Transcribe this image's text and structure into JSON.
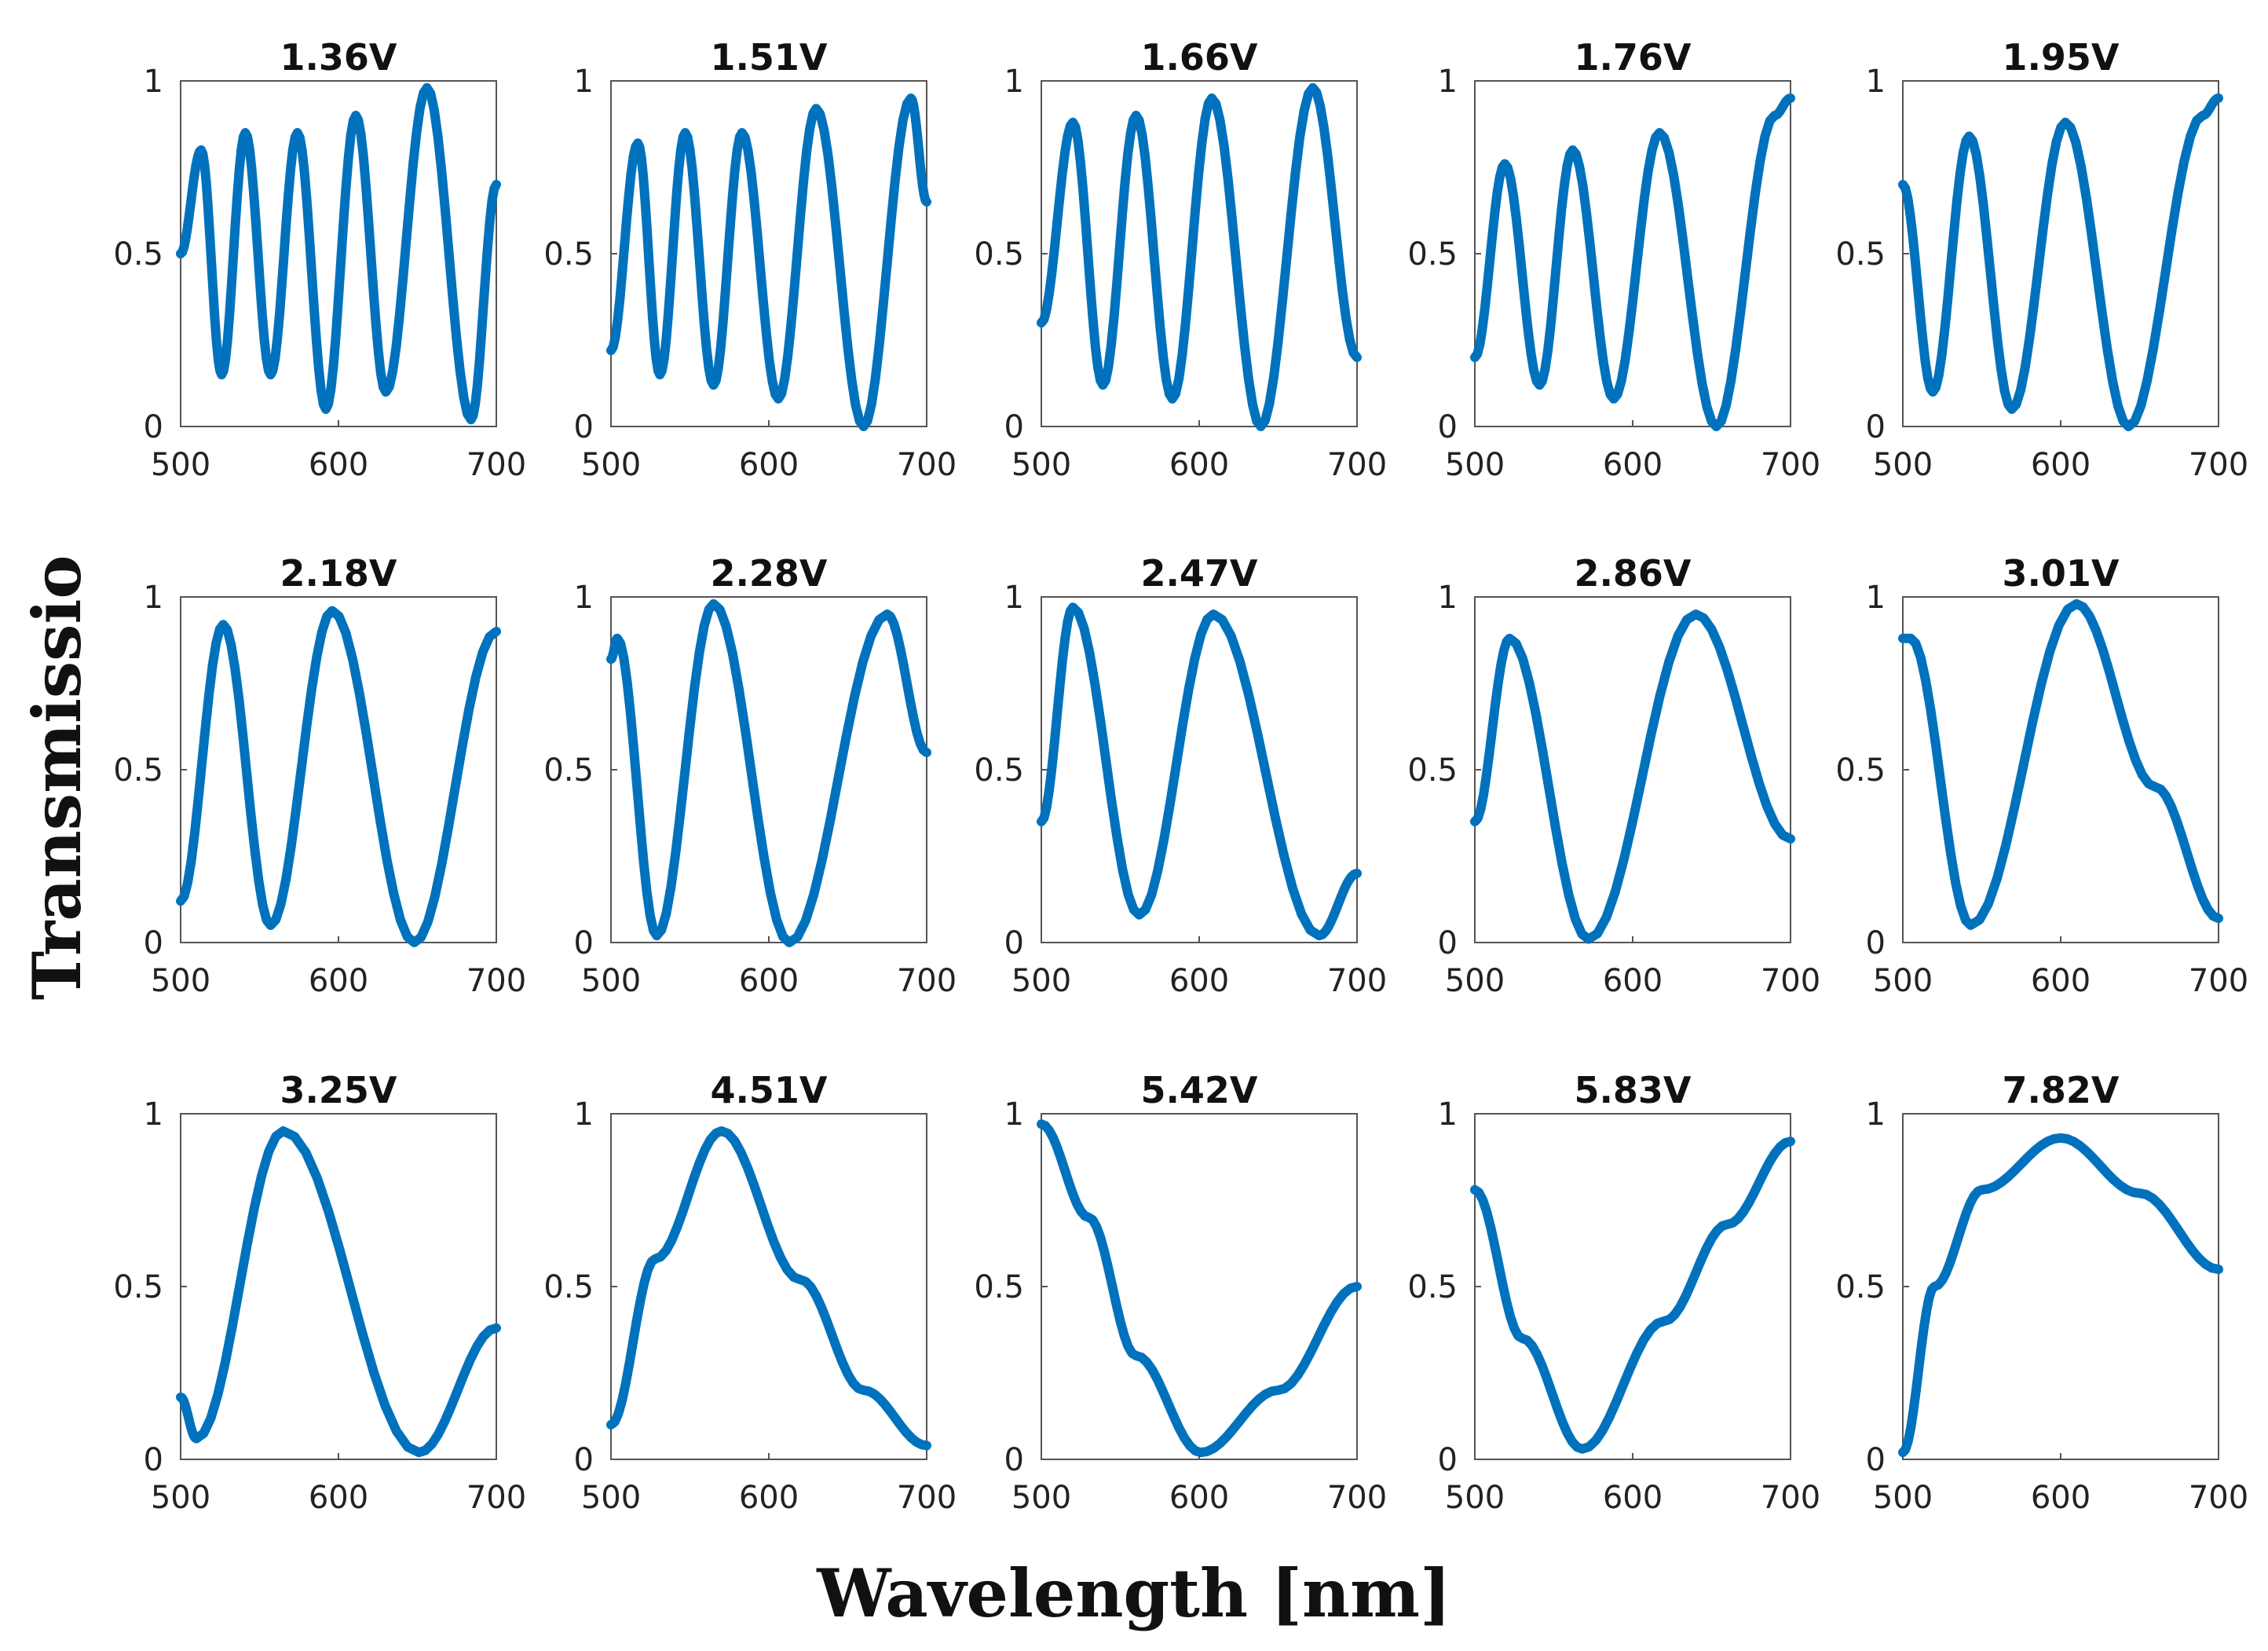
{
  "figure": {
    "xlabel": "Wavelength [nm]",
    "ylabel": "Transmissio",
    "line_color": "#0072BD"
  },
  "chart_data": [
    {
      "type": "line",
      "title": "1.36V",
      "xlim": [
        500,
        700
      ],
      "ylim": [
        0,
        1
      ],
      "xticks": [
        "500",
        "600",
        "700"
      ],
      "yticks": [
        "0",
        "0.5",
        "1"
      ],
      "x": [
        500,
        513,
        526,
        541,
        557,
        574,
        592,
        611,
        630,
        656,
        684,
        700
      ],
      "y": [
        0.5,
        0.8,
        0.15,
        0.85,
        0.15,
        0.85,
        0.05,
        0.9,
        0.1,
        0.98,
        0.02,
        0.7
      ]
    },
    {
      "type": "line",
      "title": "1.51V",
      "xlim": [
        500,
        700
      ],
      "ylim": [
        0,
        1
      ],
      "xticks": [
        "500",
        "600",
        "700"
      ],
      "yticks": [
        "0",
        "0.5",
        "1"
      ],
      "x": [
        500,
        517,
        531,
        547,
        565,
        583,
        606,
        630,
        660,
        690,
        700
      ],
      "y": [
        0.22,
        0.82,
        0.15,
        0.85,
        0.12,
        0.85,
        0.08,
        0.92,
        0.0,
        0.95,
        0.65
      ]
    },
    {
      "type": "line",
      "title": "1.66V",
      "xlim": [
        500,
        700
      ],
      "ylim": [
        0,
        1
      ],
      "xticks": [
        "500",
        "600",
        "700"
      ],
      "yticks": [
        "0",
        "0.5",
        "1"
      ],
      "x": [
        500,
        520,
        539,
        560,
        583,
        608,
        639,
        672,
        700
      ],
      "y": [
        0.3,
        0.88,
        0.12,
        0.9,
        0.08,
        0.95,
        0.0,
        0.98,
        0.2
      ]
    },
    {
      "type": "line",
      "title": "1.76V",
      "xlim": [
        500,
        700
      ],
      "ylim": [
        0,
        1
      ],
      "xticks": [
        "500",
        "600",
        "700"
      ],
      "yticks": [
        "0",
        "0.5",
        "1"
      ],
      "x": [
        500,
        519,
        541,
        562,
        588,
        617,
        653,
        690,
        700
      ],
      "y": [
        0.2,
        0.76,
        0.12,
        0.8,
        0.08,
        0.85,
        0.0,
        0.9,
        0.95
      ]
    },
    {
      "type": "line",
      "title": "1.95V",
      "xlim": [
        500,
        700
      ],
      "ylim": [
        0,
        1
      ],
      "xticks": [
        "500",
        "600",
        "700"
      ],
      "yticks": [
        "0",
        "0.5",
        "1"
      ],
      "x": [
        500,
        519,
        542,
        569,
        603,
        643,
        690,
        700
      ],
      "y": [
        0.7,
        0.1,
        0.84,
        0.05,
        0.88,
        0.0,
        0.9,
        0.95
      ]
    },
    {
      "type": "line",
      "title": "2.18V",
      "xlim": [
        500,
        700
      ],
      "ylim": [
        0,
        1
      ],
      "xticks": [
        "500",
        "600",
        "700"
      ],
      "yticks": [
        "0",
        "0.5",
        "1"
      ],
      "x": [
        500,
        527,
        557,
        596,
        648,
        700
      ],
      "y": [
        0.12,
        0.92,
        0.05,
        0.96,
        0.0,
        0.9
      ]
    },
    {
      "type": "line",
      "title": "2.28V",
      "xlim": [
        500,
        700
      ],
      "ylim": [
        0,
        1
      ],
      "xticks": [
        "500",
        "600",
        "700"
      ],
      "yticks": [
        "0",
        "0.5",
        "1"
      ],
      "x": [
        500,
        504,
        529,
        565,
        613,
        675,
        700
      ],
      "y": [
        0.82,
        0.88,
        0.02,
        0.98,
        0.0,
        0.95,
        0.55
      ]
    },
    {
      "type": "line",
      "title": "2.47V",
      "xlim": [
        500,
        700
      ],
      "ylim": [
        0,
        1
      ],
      "xticks": [
        "500",
        "600",
        "700"
      ],
      "yticks": [
        "0",
        "0.5",
        "1"
      ],
      "x": [
        500,
        520,
        562,
        609,
        676,
        700
      ],
      "y": [
        0.35,
        0.97,
        0.08,
        0.95,
        0.02,
        0.2
      ]
    },
    {
      "type": "line",
      "title": "2.86V",
      "xlim": [
        500,
        700
      ],
      "ylim": [
        0,
        1
      ],
      "xticks": [
        "500",
        "600",
        "700"
      ],
      "yticks": [
        "0",
        "0.5",
        "1"
      ],
      "x": [
        500,
        522,
        572,
        640,
        700
      ],
      "y": [
        0.35,
        0.88,
        0.01,
        0.95,
        0.3
      ]
    },
    {
      "type": "line",
      "title": "3.01V",
      "xlim": [
        500,
        700
      ],
      "ylim": [
        0,
        1
      ],
      "xticks": [
        "500",
        "600",
        "700"
      ],
      "yticks": [
        "0",
        "0.5",
        "1"
      ],
      "x": [
        500,
        505,
        543,
        610,
        660,
        700
      ],
      "y": [
        0.88,
        0.88,
        0.05,
        0.98,
        0.45,
        0.07
      ]
    },
    {
      "type": "line",
      "title": "3.25V",
      "xlim": [
        500,
        700
      ],
      "ylim": [
        0,
        1
      ],
      "xticks": [
        "500",
        "600",
        "700"
      ],
      "yticks": [
        "0",
        "0.5",
        "1"
      ],
      "x": [
        500,
        510,
        565,
        651,
        700
      ],
      "y": [
        0.18,
        0.06,
        0.95,
        0.02,
        0.38
      ]
    },
    {
      "type": "line",
      "title": "4.51V",
      "xlim": [
        500,
        700
      ],
      "ylim": [
        0,
        1
      ],
      "xticks": [
        "500",
        "600",
        "700"
      ],
      "yticks": [
        "0",
        "0.5",
        "1"
      ],
      "x": [
        500,
        528,
        570,
        620,
        660,
        700
      ],
      "y": [
        0.1,
        0.58,
        0.95,
        0.52,
        0.2,
        0.04
      ]
    },
    {
      "type": "line",
      "title": "5.42V",
      "xlim": [
        500,
        700
      ],
      "ylim": [
        0,
        1
      ],
      "xticks": [
        "500",
        "600",
        "700"
      ],
      "yticks": [
        "0",
        "0.5",
        "1"
      ],
      "x": [
        500,
        530,
        560,
        601,
        650,
        700
      ],
      "y": [
        0.97,
        0.7,
        0.3,
        0.02,
        0.2,
        0.5
      ]
    },
    {
      "type": "line",
      "title": "5.83V",
      "xlim": [
        500,
        700
      ],
      "ylim": [
        0,
        1
      ],
      "xticks": [
        "500",
        "600",
        "700"
      ],
      "yticks": [
        "0",
        "0.5",
        "1"
      ],
      "x": [
        500,
        530,
        568,
        620,
        660,
        700
      ],
      "y": [
        0.78,
        0.35,
        0.03,
        0.4,
        0.68,
        0.92
      ]
    },
    {
      "type": "line",
      "title": "7.82V",
      "xlim": [
        500,
        700
      ],
      "ylim": [
        0,
        1
      ],
      "xticks": [
        "500",
        "600",
        "700"
      ],
      "yticks": [
        "0",
        "0.5",
        "1"
      ],
      "x": [
        500,
        520,
        550,
        600,
        650,
        700
      ],
      "y": [
        0.02,
        0.5,
        0.78,
        0.93,
        0.77,
        0.55
      ]
    }
  ]
}
